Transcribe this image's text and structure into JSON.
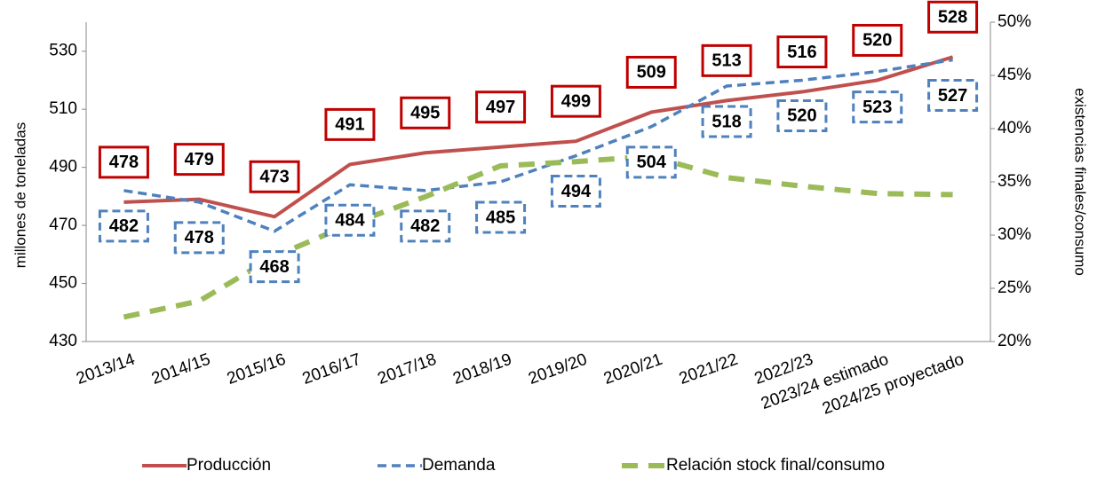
{
  "chart_data": {
    "type": "line",
    "y_label": "millones de toneladas",
    "y2_label": "existencias finales/consumo",
    "categories": [
      "2013/14",
      "2014/15",
      "2015/16",
      "2016/17",
      "2017/18",
      "2018/19",
      "2019/20",
      "2020/21",
      "2021/22",
      "2022/23",
      "2023/24 estimado",
      "2024/25 proyectado"
    ],
    "series": [
      {
        "name": "Producción",
        "color": "#c0504d",
        "label_border": "#c00000",
        "values": [
          478,
          479,
          473,
          491,
          495,
          497,
          499,
          509,
          513,
          516,
          520,
          528
        ]
      },
      {
        "name": "Demanda",
        "color": "#4f81bd",
        "label_border": "#4f81bd",
        "values": [
          482,
          478,
          468,
          484,
          482,
          485,
          494,
          504,
          518,
          520,
          523,
          527
        ]
      },
      {
        "name": "Relación stock final/consumo",
        "color": "#9bbb59",
        "axis": "y2",
        "values": [
          22.3,
          23.8,
          28,
          31,
          33.6,
          36.5,
          36.9,
          37.4,
          35.4,
          34.6,
          33.9,
          33.8
        ]
      }
    ],
    "ylim": [
      430,
      540
    ],
    "yticks": [
      430,
      450,
      470,
      490,
      510,
      530
    ],
    "y2lim": [
      20,
      50
    ],
    "y2ticks": [
      {
        "value": 20,
        "label": "20%"
      },
      {
        "value": 25,
        "label": "25%"
      },
      {
        "value": 30,
        "label": "30%"
      },
      {
        "value": 35,
        "label": "35%"
      },
      {
        "value": 40,
        "label": "40%"
      },
      {
        "value": 45,
        "label": "45%"
      },
      {
        "value": 50,
        "label": "50%"
      }
    ],
    "legend": "bottom"
  }
}
